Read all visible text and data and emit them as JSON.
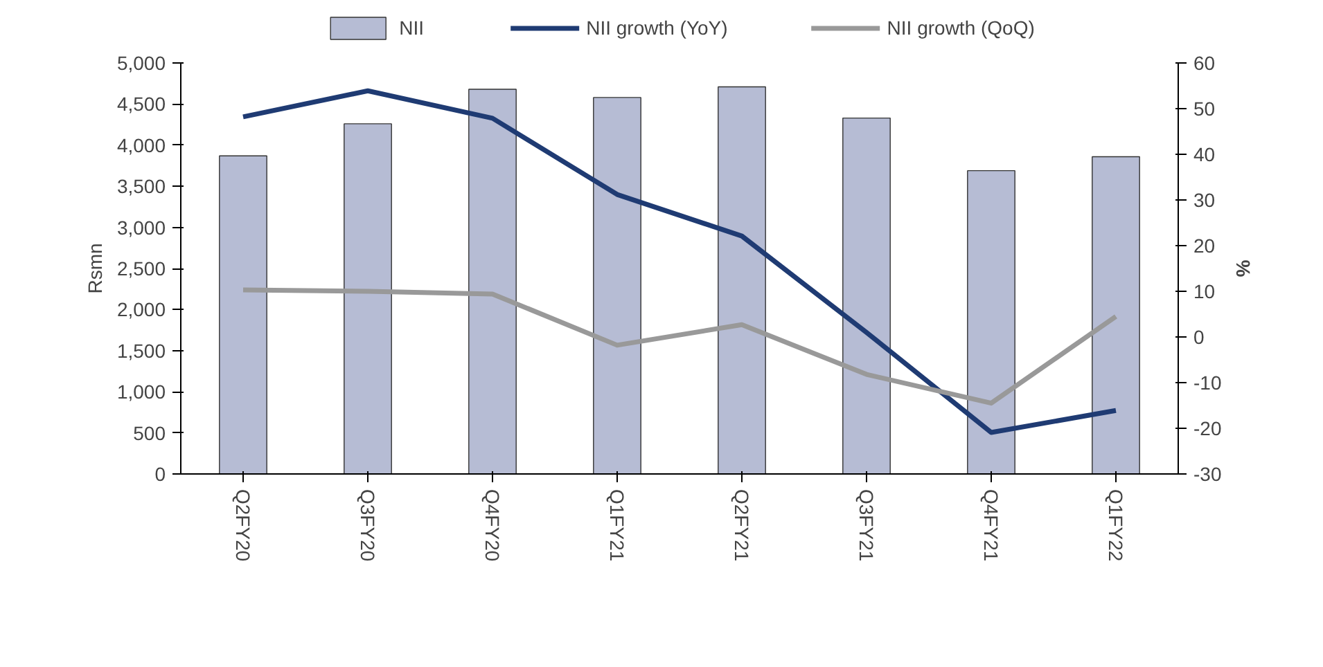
{
  "chart_data": {
    "type": "bar",
    "categories": [
      "Q2FY20",
      "Q3FY20",
      "Q4FY20",
      "Q1FY21",
      "Q2FY21",
      "Q3FY21",
      "Q4FY21",
      "Q1FY22"
    ],
    "series": [
      {
        "name": "NII",
        "color": "#b6bcd4",
        "values": [
          3870,
          4260,
          4680,
          4580,
          4710,
          4330,
          3690,
          3860
        ]
      },
      {
        "name": "NII growth (YoY)",
        "type": "line",
        "axis": "y2",
        "color": "#1f3b73",
        "values": [
          48.2,
          53.9,
          47.9,
          31.2,
          22.1,
          1,
          -20.9,
          -16.1
        ]
      },
      {
        "name": "NII growth (QoQ)",
        "type": "line",
        "axis": "y2",
        "color": "#999999",
        "values": [
          10.3,
          10,
          9.4,
          -1.8,
          2.7,
          -8.2,
          -14.5,
          4.5
        ]
      }
    ],
    "ylabel": "Rsmn",
    "y2label": "%",
    "ylim": [
      0,
      5000
    ],
    "yticks": [
      {
        "value": 0,
        "label": "0"
      },
      {
        "value": 500,
        "label": "500"
      },
      {
        "value": 1000,
        "label": "1,000"
      },
      {
        "value": 1500,
        "label": "1,500"
      },
      {
        "value": 2000,
        "label": "2,000"
      },
      {
        "value": 2500,
        "label": "2,500"
      },
      {
        "value": 3000,
        "label": "3,000"
      },
      {
        "value": 3500,
        "label": "3,500"
      },
      {
        "value": 4000,
        "label": "4,000"
      },
      {
        "value": 4500,
        "label": "4,500"
      },
      {
        "value": 5000,
        "label": "5,000"
      }
    ],
    "y2lim": [
      -30,
      60
    ],
    "y2ticks": [
      -30,
      -20,
      -10,
      0,
      10,
      20,
      30,
      40,
      50,
      60
    ],
    "grid": false,
    "legend": "top",
    "line_style": "solid",
    "marker": "none"
  }
}
